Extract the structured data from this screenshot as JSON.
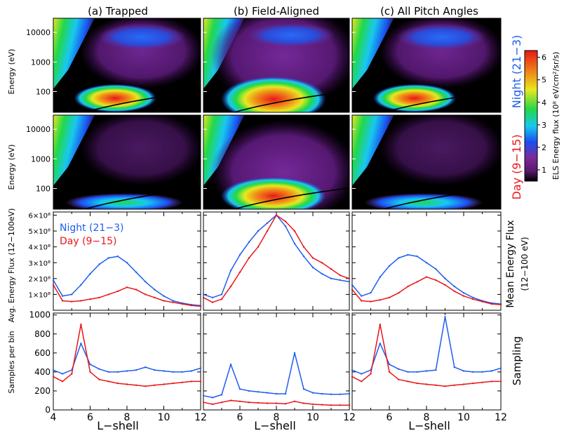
{
  "figure": {
    "column_titles": [
      "(a) Trapped",
      "(b) Field-Aligned",
      "(c) All Pitch Angles"
    ],
    "row_labels": {
      "night": "Night (21−3)",
      "day": "Day (9−15)",
      "flux": "Mean Energy Flux",
      "flux_sub": "(12−100 eV)",
      "sampling": "Sampling"
    },
    "colors": {
      "night": "#1e5ef0",
      "day": "#e8161b",
      "background": "#000000"
    }
  },
  "chart_data": [
    {
      "type": "heatmap",
      "panel": "spectrograms",
      "ylabel": "Energy (eV)",
      "y_scale": "log",
      "yticks": [
        "100",
        "1000",
        "10000"
      ],
      "xlim": [
        4,
        12
      ],
      "rows": [
        "Night (21−3)",
        "Day (9−15)"
      ],
      "colorbar": {
        "label": "ELS Energy flux (10⁸ eV/cm²/sr/s)",
        "ticks": [
          "1",
          "2",
          "3",
          "4",
          "5",
          "6"
        ],
        "range": [
          0.5,
          6.3
        ],
        "colormap": "rainbow"
      }
    },
    {
      "type": "line",
      "panel": "mean-energy-flux",
      "ylabel": "Avg. Energy Flux (12−100eV)",
      "yticks": [
        "1×10⁸",
        "2×10⁸",
        "3×10⁸",
        "4×10⁸",
        "5×10⁸",
        "6×10⁸"
      ],
      "ylim": [
        0,
        6.2
      ],
      "y_units": "10^8",
      "xlim": [
        4,
        12
      ],
      "x": [
        4.0,
        4.5,
        5.0,
        5.5,
        6.0,
        6.5,
        7.0,
        7.5,
        8.0,
        8.5,
        9.0,
        9.5,
        10.0,
        10.5,
        11.0,
        11.5,
        12.0
      ],
      "legend": [
        "Night (21−3)",
        "Day (9−15)"
      ],
      "panels": [
        {
          "name": "(a) Trapped",
          "series": [
            {
              "name": "Night (21−3)",
              "values": [
                1.9,
                0.9,
                1.0,
                1.6,
                2.3,
                2.9,
                3.3,
                3.4,
                3.0,
                2.4,
                1.8,
                1.3,
                0.9,
                0.6,
                0.45,
                0.35,
                0.3
              ]
            },
            {
              "name": "Day (9−15)",
              "values": [
                1.6,
                0.6,
                0.55,
                0.6,
                0.7,
                0.8,
                1.0,
                1.2,
                1.45,
                1.3,
                1.0,
                0.8,
                0.6,
                0.5,
                0.4,
                0.3,
                0.25
              ]
            }
          ]
        },
        {
          "name": "(b) Field-Aligned",
          "series": [
            {
              "name": "Night (21−3)",
              "values": [
                1.0,
                0.8,
                1.0,
                2.5,
                3.5,
                4.3,
                5.0,
                5.5,
                6.0,
                5.3,
                4.2,
                3.4,
                2.7,
                2.3,
                2.0,
                1.9,
                1.8
              ]
            },
            {
              "name": "Day (9−15)",
              "values": [
                0.8,
                0.5,
                0.7,
                1.5,
                2.4,
                3.3,
                4.0,
                5.0,
                6.0,
                5.6,
                5.0,
                4.0,
                3.3,
                3.0,
                2.6,
                2.2,
                2.0
              ]
            }
          ]
        },
        {
          "name": "(c) All Pitch Angles",
          "series": [
            {
              "name": "Night (21−3)",
              "values": [
                1.6,
                0.9,
                1.1,
                2.1,
                2.8,
                3.3,
                3.5,
                3.4,
                3.0,
                2.6,
                2.0,
                1.5,
                1.1,
                0.8,
                0.6,
                0.45,
                0.4
              ]
            },
            {
              "name": "Day (9−15)",
              "values": [
                1.3,
                0.6,
                0.55,
                0.65,
                0.8,
                1.1,
                1.5,
                1.8,
                2.1,
                1.9,
                1.6,
                1.2,
                0.9,
                0.7,
                0.55,
                0.4,
                0.35
              ]
            }
          ]
        }
      ]
    },
    {
      "type": "line",
      "panel": "sampling",
      "ylabel": "Samples per bin",
      "yticks": [
        "0",
        "200",
        "400",
        "600",
        "800",
        "1000"
      ],
      "ylim": [
        0,
        1020
      ],
      "xlabel": "L−shell",
      "xticks": [
        "4",
        "6",
        "8",
        "10",
        "12"
      ],
      "xlim": [
        4,
        12
      ],
      "x": [
        4.0,
        4.5,
        5.0,
        5.5,
        6.0,
        6.5,
        7.0,
        7.5,
        8.0,
        8.5,
        9.0,
        9.5,
        10.0,
        10.5,
        11.0,
        11.5,
        12.0
      ],
      "panels": [
        {
          "name": "(a) Trapped",
          "series": [
            {
              "name": "Night (21−3)",
              "values": [
                420,
                380,
                420,
                700,
                480,
                430,
                400,
                400,
                410,
                420,
                450,
                420,
                410,
                400,
                400,
                410,
                440
              ]
            },
            {
              "name": "Day (9−15)",
              "values": [
                350,
                300,
                380,
                900,
                400,
                320,
                300,
                280,
                270,
                260,
                250,
                260,
                270,
                280,
                290,
                300,
                300
              ]
            }
          ]
        },
        {
          "name": "(b) Field-Aligned",
          "series": [
            {
              "name": "Night (21−3)",
              "values": [
                150,
                130,
                160,
                480,
                220,
                200,
                190,
                180,
                170,
                170,
                600,
                220,
                180,
                170,
                165,
                165,
                170
              ]
            },
            {
              "name": "Day (9−15)",
              "values": [
                80,
                60,
                80,
                100,
                90,
                80,
                75,
                70,
                70,
                65,
                90,
                70,
                60,
                55,
                50,
                50,
                50
              ]
            }
          ]
        },
        {
          "name": "(c) All Pitch Angles",
          "series": [
            {
              "name": "Night (21−3)",
              "values": [
                420,
                380,
                420,
                700,
                480,
                430,
                400,
                400,
                410,
                420,
                980,
                450,
                410,
                400,
                400,
                410,
                440
              ]
            },
            {
              "name": "Day (9−15)",
              "values": [
                350,
                300,
                380,
                900,
                400,
                320,
                300,
                280,
                270,
                260,
                250,
                260,
                270,
                280,
                290,
                300,
                300
              ]
            }
          ]
        }
      ]
    }
  ]
}
